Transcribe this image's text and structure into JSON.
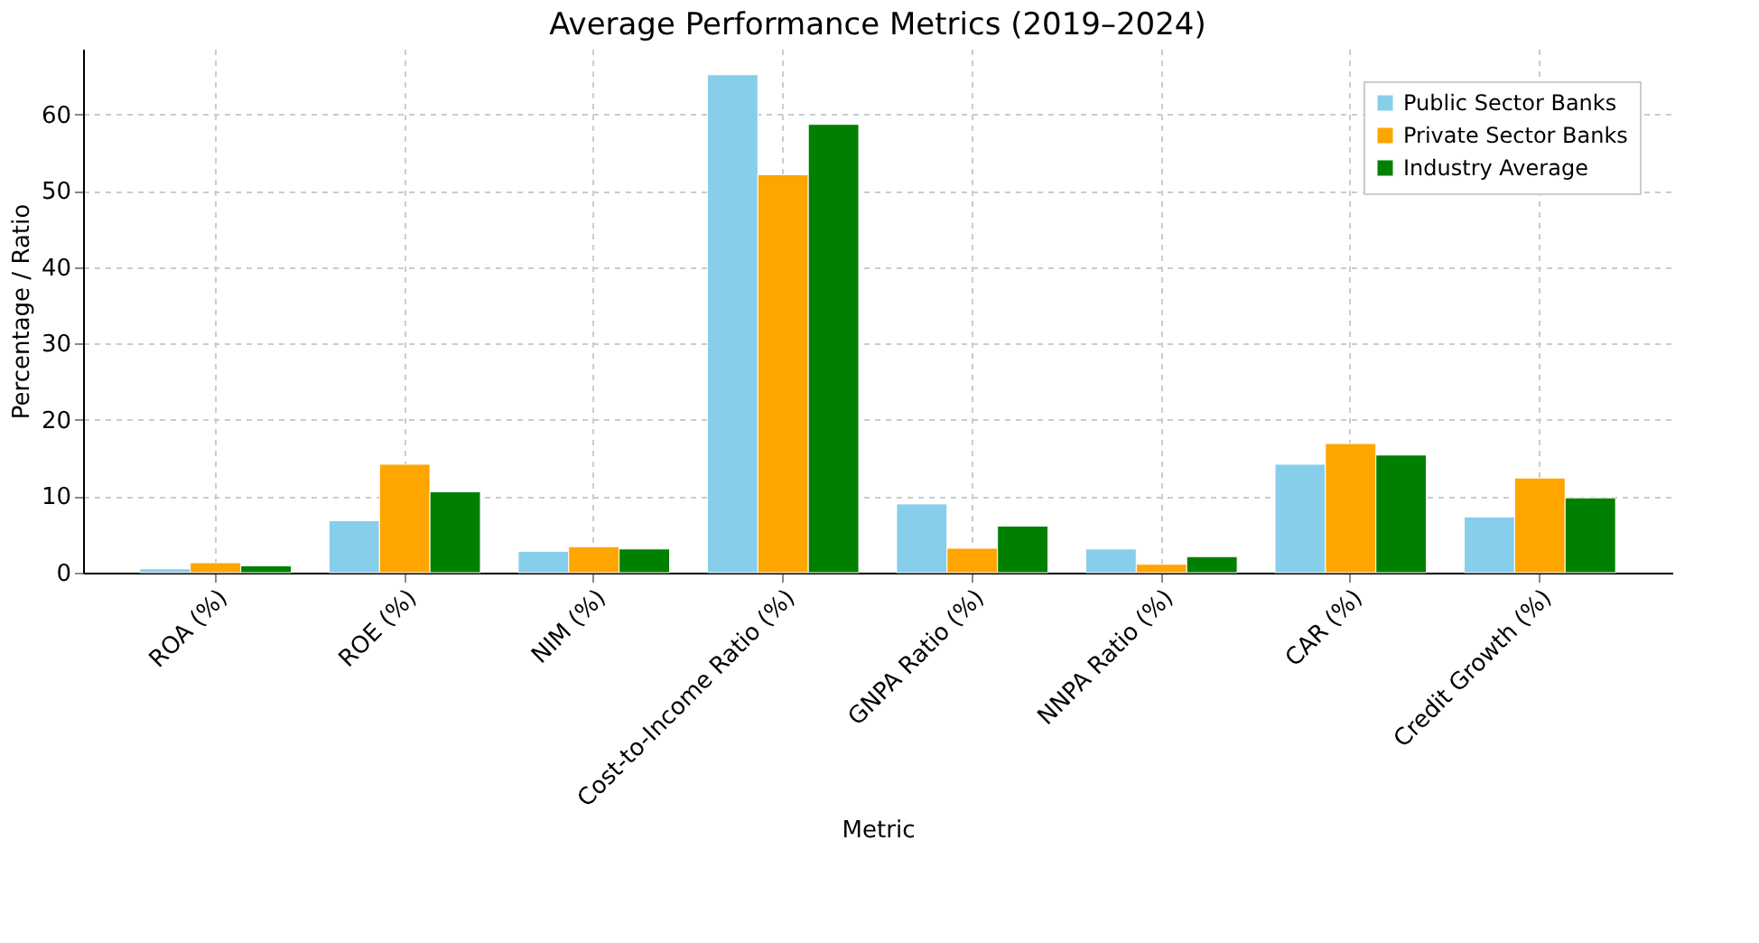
{
  "chart_data": {
    "type": "bar",
    "title": "Average Performance Metrics (2019–2024)",
    "xlabel": "Metric",
    "ylabel": "Percentage / Ratio",
    "categories": [
      "ROA (%)",
      "ROE (%)",
      "NIM (%)",
      "Cost-to-Income Ratio (%)",
      "GNPA Ratio (%)",
      "NNPA Ratio (%)",
      "CAR (%)",
      "Credit Growth (%)"
    ],
    "series": [
      {
        "name": "Public Sector Banks",
        "color": "#87ceeb",
        "values": [
          0.5,
          6.8,
          2.8,
          65.2,
          9.0,
          3.1,
          14.2,
          7.3
        ]
      },
      {
        "name": "Private Sector Banks",
        "color": "#ffa500",
        "values": [
          1.3,
          14.2,
          3.4,
          52.1,
          3.2,
          1.1,
          16.9,
          12.4
        ]
      },
      {
        "name": "Industry Average",
        "color": "#008000",
        "values": [
          0.9,
          10.6,
          3.1,
          58.7,
          6.1,
          2.1,
          15.4,
          9.8
        ]
      }
    ],
    "ylim": [
      0,
      68.6
    ],
    "yticks": [
      0,
      10,
      20,
      30,
      40,
      50,
      60
    ],
    "grid": true,
    "legend": "top right"
  }
}
